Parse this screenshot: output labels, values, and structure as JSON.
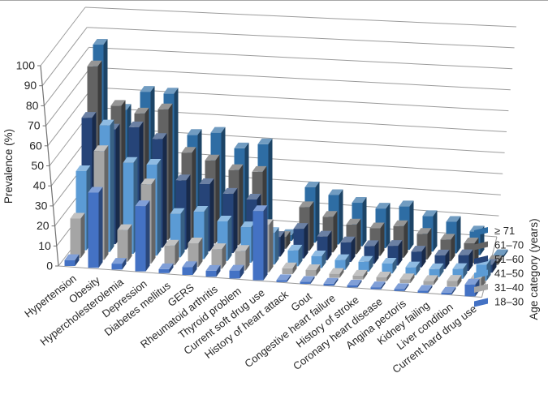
{
  "figure": {
    "type": "3d-column-chart",
    "y_axis": {
      "title": "Prevalence (%)",
      "min": 0,
      "max": 100,
      "step": 10,
      "tick_labels": [
        "0",
        "10",
        "20",
        "30",
        "40",
        "50",
        "60",
        "70",
        "80",
        "90",
        "100"
      ]
    },
    "series_axis": {
      "title": "Age category (years)"
    },
    "legend": {
      "position": "right",
      "items": [
        {
          "label": "≥ 71",
          "color": "#2E6DA4"
        },
        {
          "label": "61–70",
          "color": "#636363"
        },
        {
          "label": "51–60",
          "color": "#264478"
        },
        {
          "label": "41–50",
          "color": "#5B9BD5"
        },
        {
          "label": "31–40",
          "color": "#A5A5A5"
        },
        {
          "label": "18–30",
          "color": "#4472C4"
        }
      ]
    }
  },
  "chart_data": {
    "type": "bar",
    "title": "",
    "xlabel": "",
    "ylabel": "Prevalence (%)",
    "zlabel": "Age category (years)",
    "ylim": [
      0,
      100
    ],
    "grid": true,
    "legend_position": "right",
    "categories": [
      "Hypertension",
      "Obesity",
      "Hypercholesterolemia",
      "Depression",
      "Diabetes mellitus",
      "GERS",
      "Rheumatoid arthritis",
      "Thyroid problem",
      "Current soft drug use",
      "History of heart attack",
      "Gout",
      "Congestive heart failure",
      "History of stroke",
      "Coronary heart disease",
      "Angina pectoris",
      "Kidney failing",
      "Liver condition",
      "Current hard drug use"
    ],
    "series": [
      {
        "name": "18–30",
        "color": "#4472C4",
        "values": [
          3,
          38,
          3,
          33,
          2,
          4,
          3,
          4,
          35,
          1,
          1,
          1,
          1,
          1,
          1,
          1,
          1,
          6
        ]
      },
      {
        "name": "31–40",
        "color": "#A5A5A5",
        "values": [
          20,
          55,
          16,
          40,
          10,
          12,
          10,
          10,
          24,
          3,
          3,
          2,
          2,
          2,
          2,
          2,
          3,
          5
        ]
      },
      {
        "name": "41–50",
        "color": "#5B9BD5",
        "values": [
          40,
          64,
          46,
          46,
          22,
          24,
          20,
          18,
          16,
          8,
          6,
          5,
          5,
          5,
          4,
          4,
          5,
          8
        ]
      },
      {
        "name": "51–60",
        "color": "#264478",
        "values": [
          63,
          58,
          60,
          55,
          35,
          34,
          30,
          28,
          10,
          15,
          12,
          10,
          9,
          10,
          8,
          7,
          8,
          4
        ]
      },
      {
        "name": "61–70",
        "color": "#636363",
        "values": [
          85,
          66,
          63,
          66,
          45,
          42,
          38,
          38,
          6,
          22,
          18,
          15,
          14,
          16,
          13,
          11,
          10,
          2
        ]
      },
      {
        "name": "≥ 71",
        "color": "#2E6DA4",
        "values": [
          92,
          60,
          70,
          70,
          50,
          52,
          45,
          48,
          3,
          28,
          25,
          22,
          20,
          22,
          18,
          16,
          12,
          1
        ]
      }
    ]
  }
}
